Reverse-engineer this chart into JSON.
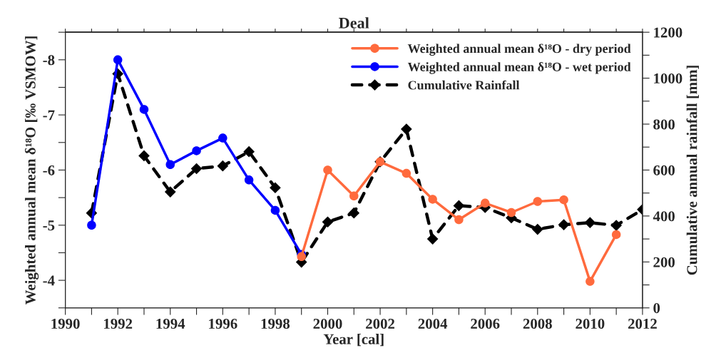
{
  "chart_data": {
    "type": "line",
    "title": "Deal",
    "xlabel": "Year [cal]",
    "ylabel": "Weighted annual mean δ¹⁸O [‰ VSMOW]",
    "y2label": "Cumulative annual rainfall [mm]",
    "xlim": [
      1990,
      2012
    ],
    "xticks": [
      1990,
      {
        "value": 1991,
        "label": null
      },
      1992,
      {
        "value": 1993,
        "label": null
      },
      1994,
      {
        "value": 1995,
        "label": null
      },
      1996,
      {
        "value": 1997,
        "label": null
      },
      1998,
      {
        "value": 1999,
        "label": null
      },
      2000,
      {
        "value": 2001,
        "label": null
      },
      2002,
      {
        "value": 2003,
        "label": null
      },
      2004,
      {
        "value": 2005,
        "label": null
      },
      2006,
      {
        "value": 2007,
        "label": null
      },
      2008,
      {
        "value": 2009,
        "label": null
      },
      2010,
      {
        "value": 2011,
        "label": null
      },
      2012
    ],
    "ylim": [
      -3.5,
      -8.5
    ],
    "yticks": [
      {
        "value": -8.5,
        "label": null
      },
      -8,
      {
        "value": -7.5,
        "label": null
      },
      -7,
      {
        "value": -6.5,
        "label": null
      },
      -6,
      {
        "value": -5.5,
        "label": null
      },
      -5,
      {
        "value": -4.5,
        "label": null
      },
      -4,
      {
        "value": -3.5,
        "label": null
      }
    ],
    "y2lim": [
      0,
      1200
    ],
    "y2ticks": [
      0,
      {
        "value": 100,
        "label": null
      },
      200,
      {
        "value": 300,
        "label": null
      },
      400,
      {
        "value": 500,
        "label": null
      },
      600,
      {
        "value": 700,
        "label": null
      },
      800,
      {
        "value": 900,
        "label": null
      },
      1000,
      {
        "value": 1100,
        "label": null
      },
      1200
    ],
    "grid": false,
    "legend": "top right",
    "series": [
      {
        "name": "Weighted annual mean δ¹⁸O - dry period",
        "color": "#ff6a3d",
        "marker": "circle",
        "line_style": "solid",
        "x": [
          1999,
          2000,
          2001,
          2002,
          2003,
          2004,
          2005,
          2006,
          2007,
          2008,
          2009,
          2010,
          2011
        ],
        "values": [
          -4.43,
          -6.0,
          -5.53,
          -6.15,
          -5.94,
          -5.47,
          -5.1,
          -5.4,
          -5.23,
          -5.43,
          -5.46,
          -3.98,
          -4.83
        ]
      },
      {
        "name": "Weighted annual mean δ¹⁸O - wet period",
        "color": "#0000ff",
        "marker": "circle",
        "line_style": "solid",
        "x": [
          1991,
          1992,
          1993,
          1994,
          1995,
          1996,
          1997,
          1998,
          1999
        ],
        "values": [
          -5.0,
          -8.0,
          -7.1,
          -6.1,
          -6.35,
          -6.58,
          -5.82,
          -5.27,
          -4.47
        ]
      },
      {
        "name": "Cumulative Rainfall",
        "color": "#000000",
        "marker": "diamond",
        "line_style": "dashed",
        "axis": "y2",
        "x": [
          1991,
          1992,
          1993,
          1994,
          1995,
          1996,
          1997,
          1998,
          1999,
          2000,
          2001,
          2002,
          2003,
          2004,
          2005,
          2006,
          2007,
          2008,
          2009,
          2010,
          2011,
          2012
        ],
        "values": [
          413,
          1019,
          662,
          505,
          606,
          618,
          680,
          523,
          199,
          374,
          413,
          636,
          778,
          300,
          445,
          437,
          392,
          342,
          362,
          371,
          359,
          428
        ]
      }
    ]
  }
}
